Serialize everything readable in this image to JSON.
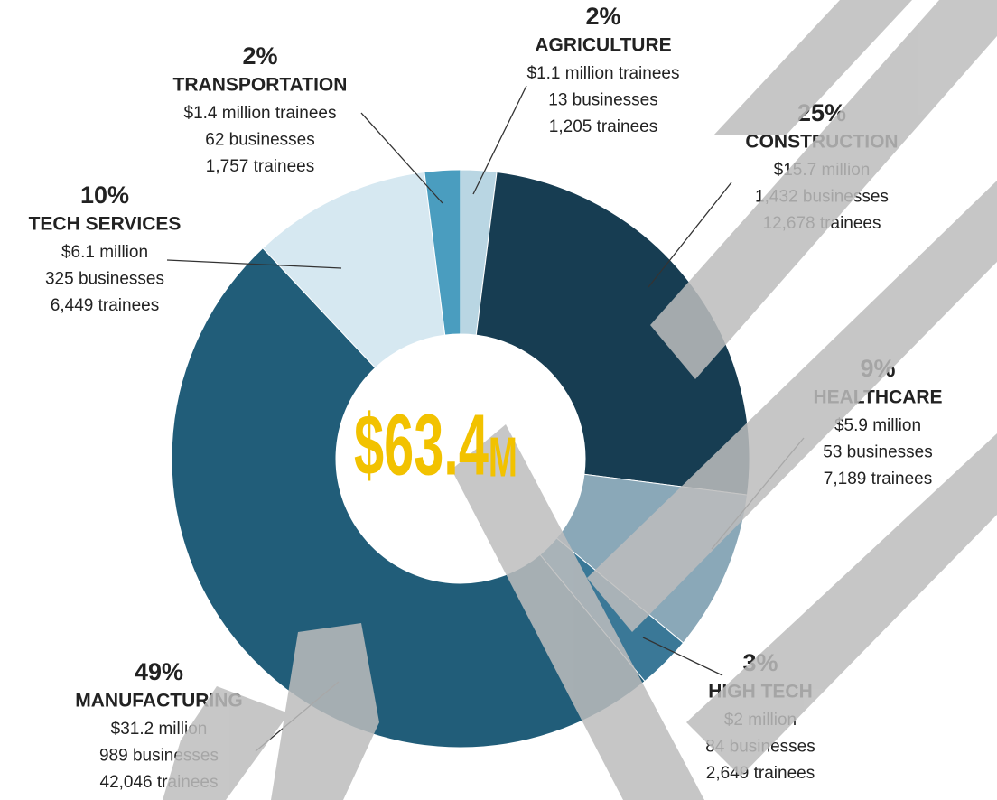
{
  "chart_data": {
    "type": "donut",
    "center_value": "$63.4",
    "center_unit": "M",
    "center_color": "#f2c200",
    "categories": [
      "AGRICULTURE",
      "CONSTRUCTION",
      "HEALTHCARE",
      "HIGH TECH",
      "MANUFACTURING",
      "TECH SERVICES",
      "TRANSPORTATION"
    ],
    "values": [
      2,
      25,
      9,
      3,
      49,
      10,
      2
    ],
    "value_labels": [
      "2%",
      "25%",
      "9%",
      "3%",
      "49%",
      "10%",
      "2%"
    ],
    "colors": [
      "#b9d6e3",
      "#173d52",
      "#8aa8b8",
      "#3a7897",
      "#215d79",
      "#d6e8f1",
      "#4a9dbf"
    ],
    "details": [
      [
        "$1.1 million trainees",
        "13 businesses",
        "1,205 trainees"
      ],
      [
        "$15.7 million",
        "1,432 businesses",
        "12,678 trainees"
      ],
      [
        "$5.9 million",
        "53 businesses",
        "7,189 trainees"
      ],
      [
        "$2 million",
        "84 businesses",
        "2,649 trainees"
      ],
      [
        "$31.2 million",
        "989 businesses",
        "42,046 trainees"
      ],
      [
        "$6.1 million",
        "325 businesses",
        "6,449 trainees"
      ],
      [
        "$1.4 million trainees",
        "62 businesses",
        "1,757 trainees"
      ]
    ]
  }
}
